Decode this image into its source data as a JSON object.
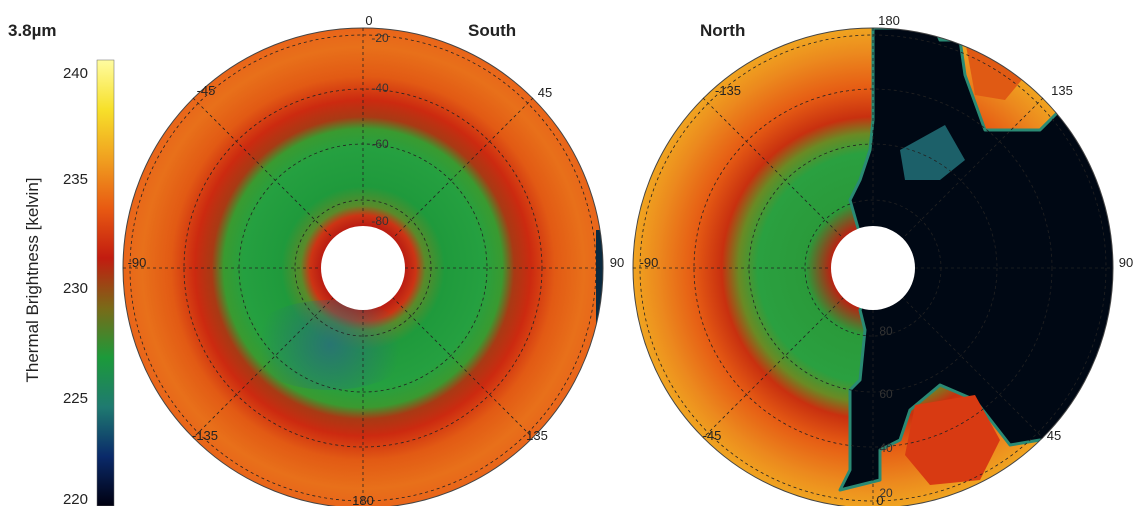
{
  "figure": {
    "wavelength_label": "3.8µm"
  },
  "colorbar": {
    "title": "Thermal Brightness [kelvin]",
    "ticks": [
      "240",
      "235",
      "230",
      "225",
      "220"
    ],
    "tick_values": [
      240,
      235,
      230,
      225,
      220
    ],
    "range": [
      220,
      240
    ],
    "colors": [
      "#000010",
      "#0a2a6a",
      "#1f7a70",
      "#1c9a3a",
      "#7a6a18",
      "#c21c10",
      "#e85a12",
      "#f0a020",
      "#f7e02a",
      "#fffca0"
    ]
  },
  "panels": [
    {
      "title": "South",
      "azimuth_labels": [
        "0",
        "45",
        "90",
        "135",
        "180",
        "-135",
        "-90",
        "-45"
      ],
      "ring_labels": [
        "-20",
        "-40",
        "-60",
        "-80"
      ]
    },
    {
      "title": "North",
      "azimuth_labels": [
        "180",
        "135",
        "90",
        "45",
        "0",
        "-45",
        "-90",
        "-135"
      ],
      "ring_labels": [
        "20",
        "40",
        "60",
        "80"
      ]
    }
  ],
  "chart_data": [
    {
      "type": "heatmap",
      "projection": "polar",
      "title": "South",
      "value_label": "Thermal Brightness [kelvin]",
      "value_range": [
        220,
        240
      ],
      "radial_latitudes": [
        -20,
        -40,
        -60,
        -80
      ],
      "azimuth_ticks": [
        0,
        45,
        90,
        135,
        180,
        -135,
        -90,
        -45
      ],
      "zones": [
        {
          "latitude_range": [
            -10,
            -30
          ],
          "brightness_K": 233
        },
        {
          "latitude_range": [
            -30,
            -50
          ],
          "brightness_K": 234
        },
        {
          "latitude_range": [
            -50,
            -80
          ],
          "brightness_K": 228
        },
        {
          "latitude_range": [
            -80,
            -85
          ],
          "brightness_K": 233
        }
      ]
    },
    {
      "type": "heatmap",
      "projection": "polar",
      "title": "North",
      "value_label": "Thermal Brightness [kelvin]",
      "value_range": [
        220,
        240
      ],
      "radial_latitudes": [
        20,
        40,
        60,
        80
      ],
      "azimuth_ticks": [
        180,
        135,
        90,
        45,
        0,
        -45,
        -90,
        -135
      ],
      "zones": [
        {
          "longitude_range": [
            -180,
            -10
          ],
          "latitude_range": [
            10,
            40
          ],
          "brightness_K": 234
        },
        {
          "longitude_range": [
            -180,
            -10
          ],
          "latitude_range": [
            40,
            80
          ],
          "brightness_K": 228
        },
        {
          "longitude_range": [
            0,
            180
          ],
          "latitude_range": [
            10,
            80
          ],
          "brightness_K": 220
        }
      ]
    }
  ]
}
